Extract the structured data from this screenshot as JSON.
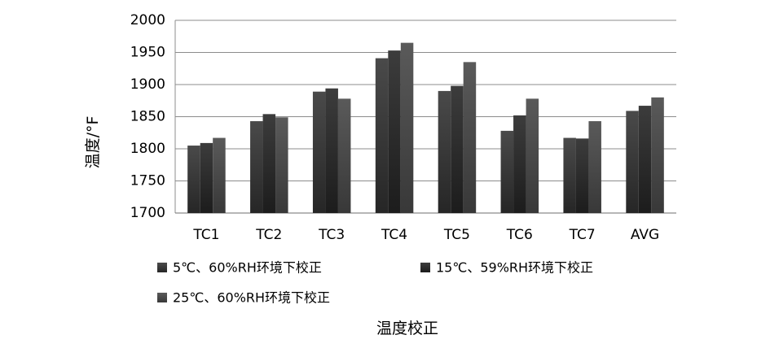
{
  "chart_data": {
    "type": "bar",
    "categories": [
      "TC1",
      "TC2",
      "TC3",
      "TC4",
      "TC5",
      "TC6",
      "TC7",
      "AVG"
    ],
    "series": [
      {
        "name": "5℃、60%RH环境下校正",
        "values": [
          1805,
          1843,
          1889,
          1941,
          1890,
          1828,
          1817,
          1859
        ]
      },
      {
        "name": "15℃、59%RH环境下校正",
        "values": [
          1809,
          1854,
          1894,
          1953,
          1898,
          1852,
          1816,
          1867
        ]
      },
      {
        "name": "25℃、60%RH环境下校正",
        "values": [
          1817,
          1849,
          1878,
          1965,
          1935,
          1878,
          1843,
          1880
        ]
      }
    ],
    "xlabel": "温度校正",
    "ylabel": "温度/°F",
    "ylim": [
      1700,
      2000
    ],
    "yticks": [
      1700,
      1750,
      1800,
      1850,
      1900,
      1950,
      2000
    ],
    "grid": true,
    "legend_position": "bottom",
    "colors": [
      "#3a3a3a",
      "#2a2a2a",
      "#4a4a4a"
    ]
  }
}
